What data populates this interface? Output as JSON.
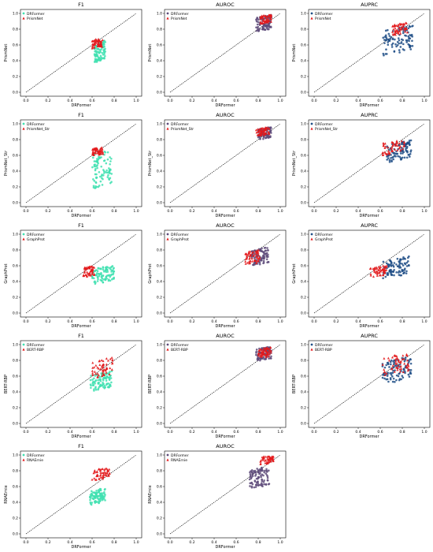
{
  "colors": {
    "f1_drformer": "#40E0B0",
    "auroc_drformer": "#5E4B7A",
    "auprc_drformer": "#1F4E86",
    "competitor": "#E31A1C",
    "diagonal": "#000000"
  },
  "chart_data": [
    {
      "type": "scatter",
      "title": "F1",
      "xlabel": "DRFormer",
      "ylabel": "PrismNet",
      "xlim": [
        -0.05,
        1.05
      ],
      "ylim": [
        -0.05,
        1.05
      ],
      "ticks": [
        "0.0",
        "0.2",
        "0.4",
        "0.6",
        "0.8",
        "1.0"
      ],
      "series": [
        {
          "name": "DRFormer",
          "marker": "circle"
        },
        {
          "name": "PrismNet",
          "marker": "triangle"
        }
      ],
      "drformer_x": [
        0.62,
        0.72
      ],
      "drformer_y": [
        0.4,
        0.65
      ],
      "comp_x": [
        0.6,
        0.7
      ],
      "comp_y": [
        0.58,
        0.7
      ]
    },
    {
      "type": "scatter",
      "title": "AUROC",
      "xlabel": "DRFormer",
      "ylabel": "PrismNet",
      "xlim": [
        -0.05,
        1.05
      ],
      "ylim": [
        -0.05,
        1.05
      ],
      "ticks": [
        "0.0",
        "0.2",
        "0.4",
        "0.6",
        "0.8",
        "1.0"
      ],
      "series": [
        {
          "name": "DRFormer",
          "marker": "circle"
        },
        {
          "name": "PrismNet",
          "marker": "triangle"
        }
      ],
      "drformer_x": [
        0.78,
        0.92
      ],
      "drformer_y": [
        0.74,
        0.92
      ],
      "comp_x": [
        0.82,
        0.92
      ],
      "comp_y": [
        0.84,
        0.94
      ]
    },
    {
      "type": "scatter",
      "title": "AUPRC",
      "xlabel": "DRFormer",
      "ylabel": "PrismNet",
      "xlim": [
        -0.05,
        1.05
      ],
      "ylim": [
        -0.05,
        1.05
      ],
      "ticks": [
        "0.0",
        "0.2",
        "0.4",
        "0.6",
        "0.8",
        "1.0"
      ],
      "series": [
        {
          "name": "DRFormer",
          "marker": "circle"
        },
        {
          "name": "PrismNet",
          "marker": "triangle"
        }
      ],
      "drformer_x": [
        0.62,
        0.9
      ],
      "drformer_y": [
        0.48,
        0.8
      ],
      "comp_x": [
        0.7,
        0.85
      ],
      "comp_y": [
        0.72,
        0.85
      ]
    },
    {
      "type": "scatter",
      "title": "F1",
      "xlabel": "DRFormer",
      "ylabel": "PrismNet_Str",
      "xlim": [
        -0.05,
        1.05
      ],
      "ylim": [
        -0.05,
        1.05
      ],
      "ticks": [
        "0.0",
        "0.2",
        "0.4",
        "0.6",
        "0.8",
        "1.0"
      ],
      "series": [
        {
          "name": "DRFormer",
          "marker": "circle"
        },
        {
          "name": "PrismNet_Str",
          "marker": "triangle"
        }
      ],
      "drformer_x": [
        0.6,
        0.78
      ],
      "drformer_y": [
        0.2,
        0.65
      ],
      "comp_x": [
        0.6,
        0.7
      ],
      "comp_y": [
        0.62,
        0.72
      ]
    },
    {
      "type": "scatter",
      "title": "AUROC",
      "xlabel": "DRFormer",
      "ylabel": "PrismNet_Str",
      "xlim": [
        -0.05,
        1.05
      ],
      "ylim": [
        -0.05,
        1.05
      ],
      "ticks": [
        "0.0",
        "0.2",
        "0.4",
        "0.6",
        "0.8",
        "1.0"
      ],
      "series": [
        {
          "name": "DRFormer",
          "marker": "circle"
        },
        {
          "name": "PrismNet_Str",
          "marker": "triangle"
        }
      ],
      "drformer_x": [
        0.8,
        0.92
      ],
      "drformer_y": [
        0.76,
        0.9
      ],
      "comp_x": [
        0.78,
        0.9
      ],
      "comp_y": [
        0.82,
        0.92
      ]
    },
    {
      "type": "scatter",
      "title": "AUPRC",
      "xlabel": "DRFormer",
      "ylabel": "PrismNet_Str",
      "xlim": [
        -0.05,
        1.05
      ],
      "ylim": [
        -0.05,
        1.05
      ],
      "ticks": [
        "0.0",
        "0.2",
        "0.4",
        "0.6",
        "0.8",
        "1.0"
      ],
      "series": [
        {
          "name": "DRFormer",
          "marker": "circle"
        },
        {
          "name": "PrismNet_Str",
          "marker": "triangle"
        }
      ],
      "drformer_x": [
        0.66,
        0.88
      ],
      "drformer_y": [
        0.52,
        0.74
      ],
      "comp_x": [
        0.62,
        0.82
      ],
      "comp_y": [
        0.62,
        0.78
      ]
    },
    {
      "type": "scatter",
      "title": "F1",
      "xlabel": "DRFormer",
      "ylabel": "GraphProt",
      "xlim": [
        -0.05,
        1.05
      ],
      "ylim": [
        -0.05,
        1.05
      ],
      "ticks": [
        "0.0",
        "0.2",
        "0.4",
        "0.6",
        "0.8",
        "1.0"
      ],
      "series": [
        {
          "name": "DRFormer",
          "marker": "circle"
        },
        {
          "name": "GraphProt",
          "marker": "triangle"
        }
      ],
      "drformer_x": [
        0.6,
        0.8
      ],
      "drformer_y": [
        0.38,
        0.6
      ],
      "comp_x": [
        0.52,
        0.62
      ],
      "comp_y": [
        0.5,
        0.62
      ]
    },
    {
      "type": "scatter",
      "title": "AUROC",
      "xlabel": "DRFormer",
      "ylabel": "GraphProt",
      "xlim": [
        -0.05,
        1.05
      ],
      "ylim": [
        -0.05,
        1.05
      ],
      "ticks": [
        "0.0",
        "0.2",
        "0.4",
        "0.6",
        "0.8",
        "1.0"
      ],
      "series": [
        {
          "name": "DRFormer",
          "marker": "circle"
        },
        {
          "name": "GraphProt",
          "marker": "triangle"
        }
      ],
      "drformer_x": [
        0.74,
        0.9
      ],
      "drformer_y": [
        0.58,
        0.78
      ],
      "comp_x": [
        0.68,
        0.82
      ],
      "comp_y": [
        0.6,
        0.78
      ]
    },
    {
      "type": "scatter",
      "title": "AUPRC",
      "xlabel": "DRFormer",
      "ylabel": "GraphProt",
      "xlim": [
        -0.05,
        1.05
      ],
      "ylim": [
        -0.05,
        1.05
      ],
      "ticks": [
        "0.0",
        "0.2",
        "0.4",
        "0.6",
        "0.8",
        "1.0"
      ],
      "series": [
        {
          "name": "DRFormer",
          "marker": "circle"
        },
        {
          "name": "GraphProt",
          "marker": "triangle"
        }
      ],
      "drformer_x": [
        0.62,
        0.86
      ],
      "drformer_y": [
        0.45,
        0.68
      ],
      "comp_x": [
        0.5,
        0.66
      ],
      "comp_y": [
        0.5,
        0.62
      ]
    },
    {
      "type": "scatter",
      "title": "F1",
      "xlabel": "DRFormer",
      "ylabel": "BERT-RBP",
      "xlim": [
        -0.05,
        1.05
      ],
      "ylim": [
        -0.05,
        1.05
      ],
      "ticks": [
        "0.0",
        "0.2",
        "0.4",
        "0.6",
        "0.8",
        "1.0"
      ],
      "series": [
        {
          "name": "DRFormer",
          "marker": "circle"
        },
        {
          "name": "BERT-RBP",
          "marker": "triangle"
        }
      ],
      "drformer_x": [
        0.58,
        0.78
      ],
      "drformer_y": [
        0.44,
        0.64
      ],
      "comp_x": [
        0.6,
        0.8
      ],
      "comp_y": [
        0.6,
        0.82
      ]
    },
    {
      "type": "scatter",
      "title": "AUROC",
      "xlabel": "DRFormer",
      "ylabel": "BERT-RBP",
      "xlim": [
        -0.05,
        1.05
      ],
      "ylim": [
        -0.05,
        1.05
      ],
      "ticks": [
        "0.0",
        "0.2",
        "0.4",
        "0.6",
        "0.8",
        "1.0"
      ],
      "series": [
        {
          "name": "DRFormer",
          "marker": "circle"
        },
        {
          "name": "BERT-RBP",
          "marker": "triangle"
        }
      ],
      "drformer_x": [
        0.78,
        0.92
      ],
      "drformer_y": [
        0.76,
        0.92
      ],
      "comp_x": [
        0.8,
        0.92
      ],
      "comp_y": [
        0.8,
        0.92
      ]
    },
    {
      "type": "scatter",
      "title": "AUPRC",
      "xlabel": "DRFormer",
      "ylabel": "BERT-RBP",
      "xlim": [
        -0.05,
        1.05
      ],
      "ylim": [
        -0.05,
        1.05
      ],
      "ticks": [
        "0.0",
        "0.2",
        "0.4",
        "0.6",
        "0.8",
        "1.0"
      ],
      "series": [
        {
          "name": "DRFormer",
          "marker": "circle"
        },
        {
          "name": "BERT-RBP",
          "marker": "triangle"
        }
      ],
      "drformer_x": [
        0.62,
        0.88
      ],
      "drformer_y": [
        0.5,
        0.8
      ],
      "comp_x": [
        0.62,
        0.86
      ],
      "comp_y": [
        0.62,
        0.86
      ]
    },
    {
      "type": "scatter",
      "title": "F1",
      "xlabel": "DRFormer",
      "ylabel": "RNAErnie",
      "xlim": [
        -0.05,
        1.05
      ],
      "ylim": [
        -0.05,
        1.05
      ],
      "ticks": [
        "0.0",
        "0.2",
        "0.4",
        "0.6",
        "0.8",
        "1.0"
      ],
      "series": [
        {
          "name": "DRFormer",
          "marker": "circle"
        },
        {
          "name": "RNAErnie",
          "marker": "triangle"
        }
      ],
      "drformer_x": [
        0.58,
        0.72
      ],
      "drformer_y": [
        0.4,
        0.58
      ],
      "comp_x": [
        0.6,
        0.76
      ],
      "comp_y": [
        0.7,
        0.84
      ]
    },
    {
      "type": "scatter",
      "title": "AUROC",
      "xlabel": "DRFormer",
      "ylabel": "RNAErnie",
      "xlim": [
        -0.05,
        1.05
      ],
      "ylim": [
        -0.05,
        1.05
      ],
      "ticks": [
        "0.0",
        "0.2",
        "0.4",
        "0.6",
        "0.8",
        "1.0"
      ],
      "series": [
        {
          "name": "DRFormer",
          "marker": "circle"
        },
        {
          "name": "RNAErnie",
          "marker": "triangle"
        }
      ],
      "drformer_x": [
        0.72,
        0.9
      ],
      "drformer_y": [
        0.56,
        0.8
      ],
      "comp_x": [
        0.82,
        0.94
      ],
      "comp_y": [
        0.84,
        0.96
      ]
    }
  ]
}
